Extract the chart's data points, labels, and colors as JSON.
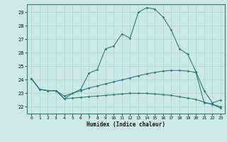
{
  "xlabel": "Humidex (Indice chaleur)",
  "bg_color": "#cce8e8",
  "grid_color": "#aacccc",
  "line_color": "#2d7d7d",
  "xlim": [
    -0.5,
    23.5
  ],
  "ylim": [
    21.5,
    29.6
  ],
  "yticks": [
    22,
    23,
    24,
    25,
    26,
    27,
    28,
    29
  ],
  "xticks": [
    0,
    1,
    2,
    3,
    4,
    5,
    6,
    7,
    8,
    9,
    10,
    11,
    12,
    13,
    14,
    15,
    16,
    17,
    18,
    19,
    20,
    21,
    22,
    23
  ],
  "line1_x": [
    0,
    1,
    2,
    3,
    4,
    5,
    6,
    7,
    8,
    9,
    10,
    11,
    12,
    13,
    14,
    15,
    16,
    17,
    18,
    19,
    20,
    21,
    22,
    23
  ],
  "line1_y": [
    24.1,
    23.3,
    23.2,
    23.2,
    22.6,
    23.0,
    23.3,
    24.5,
    24.75,
    26.3,
    26.5,
    27.4,
    27.1,
    29.0,
    29.35,
    29.25,
    28.65,
    27.7,
    26.3,
    25.9,
    24.6,
    23.2,
    22.3,
    22.5
  ],
  "line2_x": [
    0,
    1,
    2,
    3,
    4,
    5,
    6,
    7,
    8,
    9,
    10,
    11,
    12,
    13,
    14,
    15,
    16,
    17,
    18,
    19,
    20,
    21,
    22,
    23
  ],
  "line2_y": [
    24.1,
    23.3,
    23.2,
    23.2,
    22.8,
    23.0,
    23.2,
    23.4,
    23.55,
    23.7,
    23.85,
    24.0,
    24.15,
    24.3,
    24.45,
    24.55,
    24.65,
    24.7,
    24.7,
    24.65,
    24.55,
    22.3,
    22.2,
    22.0
  ],
  "line3_x": [
    0,
    1,
    2,
    3,
    4,
    5,
    6,
    7,
    8,
    9,
    10,
    11,
    12,
    13,
    14,
    15,
    16,
    17,
    18,
    19,
    20,
    21,
    22,
    23
  ],
  "line3_y": [
    24.1,
    23.3,
    23.2,
    23.2,
    22.6,
    22.65,
    22.7,
    22.75,
    22.8,
    22.85,
    22.9,
    22.95,
    23.0,
    23.0,
    23.0,
    22.95,
    22.9,
    22.85,
    22.75,
    22.65,
    22.55,
    22.35,
    22.2,
    21.9
  ]
}
